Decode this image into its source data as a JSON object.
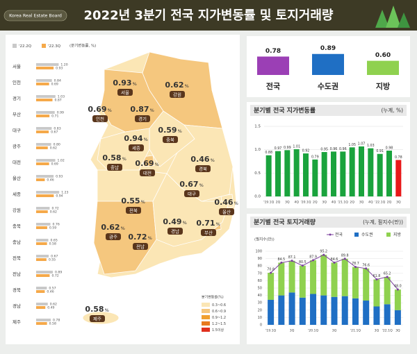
{
  "header": {
    "badge": "Korea Real Estate Board",
    "title": "2022년 3분기 전국 지가변동률 및 토지거래량"
  },
  "map_panel": {
    "unit_note": "(분기변동률, %)",
    "unit": "%",
    "regions": [
      "서울",
      "인천",
      "경기",
      "부산",
      "대구",
      "광주",
      "대전",
      "울산",
      "세종",
      "강원",
      "충북",
      "충남",
      "전북",
      "전남",
      "경북",
      "경남",
      "제주"
    ],
    "series": [
      {
        "name": "'22.2Q",
        "color": "#c9c9c9",
        "values": [
          1.2,
          0.84,
          1.03,
          0.99,
          0.83,
          0.8,
          1.02,
          0.93,
          1.23,
          0.72,
          0.76,
          0.65,
          0.67,
          0.89,
          0.57,
          0.62,
          0.78
        ],
        "value_labels": [
          "1.20",
          "0.84",
          "1.03",
          "0.99",
          "0.83",
          "0.80",
          "1.02",
          "0.93",
          "1.23",
          "0.72",
          "0.76",
          "0.65",
          "0.67",
          "0.89",
          "0.57",
          "0.62",
          "0.78"
        ]
      },
      {
        "name": "'22.3Q",
        "color": "#f5a94a",
        "values": [
          0.93,
          0.69,
          0.87,
          0.71,
          0.67,
          0.62,
          0.69,
          0.46,
          0.94,
          0.62,
          0.59,
          0.58,
          0.55,
          0.72,
          0.46,
          0.49,
          0.58
        ]
      }
    ],
    "bins": {
      "title": "분기변동률(%)",
      "items": [
        {
          "label": "0.3~0.6",
          "color": "#fbe6b5",
          "lo": 0.3,
          "hi": 0.6
        },
        {
          "label": "0.6~0.9",
          "color": "#f5c77e",
          "lo": 0.6,
          "hi": 0.9
        },
        {
          "label": "0.9~1.2",
          "color": "#f0a030",
          "lo": 0.9,
          "hi": 1.2
        },
        {
          "label": "1.2~1.5",
          "color": "#e87a1e",
          "lo": 1.2,
          "hi": 1.5
        },
        {
          "label": "1.5이상",
          "color": "#e0301e",
          "lo": 1.5,
          "hi": null
        }
      ]
    }
  },
  "chart_data": [
    {
      "type": "bar",
      "categories": [
        "전국",
        "수도권",
        "지방"
      ],
      "values": [
        0.78,
        0.89,
        0.6
      ],
      "value_labels": [
        "0.78",
        "0.89",
        "0.60"
      ],
      "colors": [
        "#9b3fb5",
        "#1f6fc4",
        "#8fd14f"
      ],
      "ylim": [
        0,
        1
      ]
    },
    {
      "type": "bar",
      "title": "분기별 전국 지가변동률",
      "subtitle": "(누계, %)",
      "categories": [
        "'19.1Q",
        "2Q",
        "3Q",
        "4Q",
        "'20.1Q",
        "2Q",
        "3Q",
        "4Q",
        "'21.1Q",
        "2Q",
        "3Q",
        "4Q",
        "'22.1Q",
        "2Q",
        "3Q"
      ],
      "values": [
        0.88,
        0.97,
        0.99,
        1.01,
        0.92,
        0.79,
        0.95,
        0.96,
        0.96,
        1.05,
        1.07,
        1.03,
        0.91,
        0.98,
        0.78
      ],
      "colors": [
        "#1aa33d",
        "#1aa33d",
        "#1aa33d",
        "#1aa33d",
        "#1aa33d",
        "#1aa33d",
        "#1aa33d",
        "#1aa33d",
        "#1aa33d",
        "#1aa33d",
        "#1aa33d",
        "#1aa33d",
        "#1aa33d",
        "#1aa33d",
        "#e8191a"
      ],
      "ylim": [
        0,
        1.5
      ],
      "yticks": [
        {
          "value": 0,
          "label": "0.0"
        },
        0.5,
        {
          "value": 1,
          "label": "1.0"
        },
        1.5
      ],
      "grid": true
    },
    {
      "type": "stacked_bar_line",
      "title": "분기별 전국 토지거래량",
      "subtitle": "(누계, 필지수(만))",
      "y_label": "(필지수(만))",
      "categories": [
        "'19.1Q",
        null,
        "3Q",
        null,
        "'20.1Q",
        null,
        "3Q",
        null,
        "'21.1Q",
        null,
        "3Q",
        "'22.1Q",
        "3Q"
      ],
      "series": [
        {
          "name": "전국",
          "color": "#7b3f9e",
          "type": "line",
          "values": [
            70.8,
            84.5,
            87.1,
            80.5,
            87.9,
            95.2,
            84.6,
            89.8,
            78.7,
            76.6,
            61.8,
            65.2,
            48
          ],
          "value_labels": [
            "70.8",
            "84.5",
            "87.1",
            "80.5",
            "87.9",
            "95.2",
            "84.6",
            "89.8",
            "78.7",
            "76.6",
            "61.8",
            "65.2",
            "48.0"
          ]
        },
        {
          "name": "수도권",
          "color": "#1f6fc4",
          "type": "bar",
          "values": [
            34,
            40,
            44,
            37,
            42,
            40,
            38,
            39,
            36,
            33,
            25,
            28,
            20
          ]
        },
        {
          "name": "지방",
          "color": "#8fd14f",
          "type": "bar",
          "values": [
            36.8,
            44.5,
            43.1,
            43.5,
            45.9,
            55.2,
            46.6,
            50.8,
            42.7,
            43.6,
            36.8,
            37.2,
            28
          ]
        }
      ],
      "ylim": [
        0,
        100
      ],
      "yticks": [
        0,
        10,
        20,
        30,
        40,
        50,
        60,
        70,
        80,
        90,
        100
      ],
      "grid": true
    }
  ]
}
